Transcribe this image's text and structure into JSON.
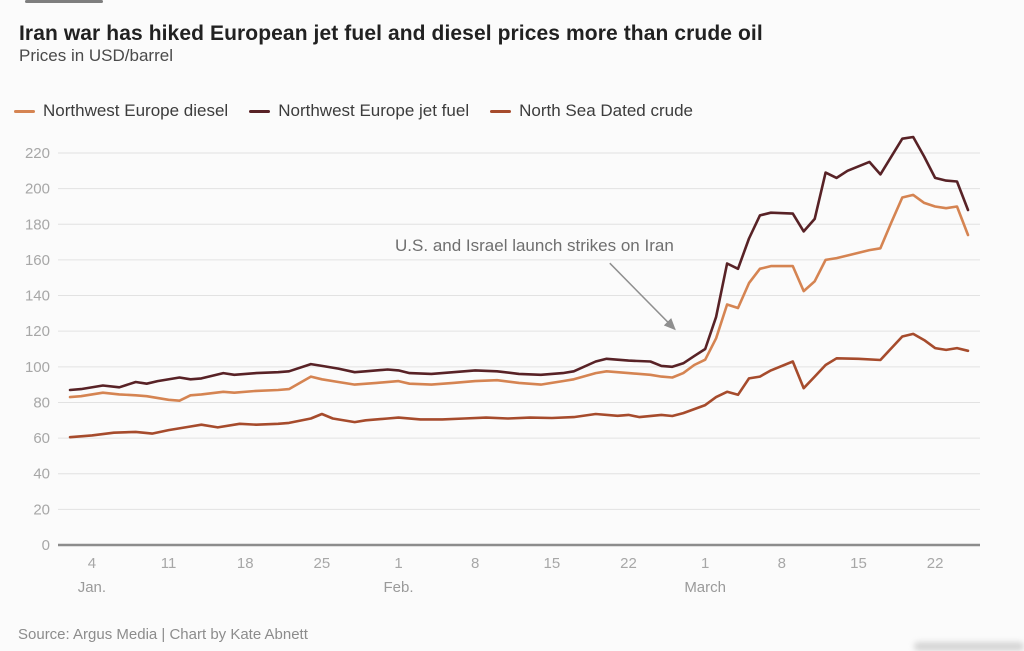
{
  "header": {
    "title": "Iran war has hiked European jet fuel and diesel prices more than crude oil",
    "subtitle": "Prices in USD/barrel"
  },
  "legend": [
    {
      "label": "Northwest Europe diesel",
      "color": "#D58452"
    },
    {
      "label": "Northwest Europe jet fuel",
      "color": "#582226"
    },
    {
      "label": "North Sea Dated crude",
      "color": "#A64B2C"
    }
  ],
  "chart_data": {
    "type": "line",
    "title": "Iran war has hiked European jet fuel and diesel prices more than crude oil",
    "subtitle": "Prices in USD/barrel",
    "xlabel": "",
    "ylabel": "Prices in USD/barrel",
    "ylim": [
      0,
      220
    ],
    "grid": "horizontal",
    "legend_position": "top",
    "y_ticks": [
      0,
      20,
      40,
      60,
      80,
      100,
      120,
      140,
      160,
      180,
      200,
      220
    ],
    "x_domain_days": [
      2,
      84
    ],
    "x_ticks": [
      {
        "day": 4,
        "label": "4"
      },
      {
        "day": 11,
        "label": "11"
      },
      {
        "day": 18,
        "label": "18"
      },
      {
        "day": 25,
        "label": "25"
      },
      {
        "day": 32,
        "label": "1"
      },
      {
        "day": 39,
        "label": "8"
      },
      {
        "day": 46,
        "label": "15"
      },
      {
        "day": 53,
        "label": "22"
      },
      {
        "day": 60,
        "label": "1"
      },
      {
        "day": 67,
        "label": "8"
      },
      {
        "day": 74,
        "label": "15"
      },
      {
        "day": 81,
        "label": "22"
      }
    ],
    "month_labels": [
      {
        "day": 4,
        "label": "Jan."
      },
      {
        "day": 32,
        "label": "Feb."
      },
      {
        "day": 60,
        "label": "March"
      }
    ],
    "annotation": {
      "text": "U.S. and Israel launch strikes on Iran",
      "target_day": 57.5,
      "target_value": 120
    },
    "series": [
      {
        "name": "Northwest Europe diesel",
        "color": "#D58452",
        "points": [
          [
            2,
            83
          ],
          [
            3,
            83.5
          ],
          [
            5,
            85.5
          ],
          [
            6.5,
            84.5
          ],
          [
            8,
            84
          ],
          [
            9,
            83.5
          ],
          [
            11,
            81.5
          ],
          [
            12,
            81
          ],
          [
            13,
            84
          ],
          [
            14,
            84.5
          ],
          [
            16,
            86
          ],
          [
            17,
            85.5
          ],
          [
            19,
            86.5
          ],
          [
            21,
            87
          ],
          [
            22,
            87.5
          ],
          [
            24,
            94.5
          ],
          [
            25,
            93
          ],
          [
            26.5,
            91.5
          ],
          [
            28,
            90
          ],
          [
            30,
            91
          ],
          [
            32,
            92
          ],
          [
            33,
            90.5
          ],
          [
            35,
            90
          ],
          [
            37,
            91
          ],
          [
            39,
            92
          ],
          [
            41,
            92.5
          ],
          [
            43,
            91
          ],
          [
            45,
            90
          ],
          [
            47,
            92
          ],
          [
            48,
            93
          ],
          [
            50,
            96.5
          ],
          [
            51,
            97.5
          ],
          [
            53,
            96.5
          ],
          [
            55,
            95.5
          ],
          [
            56,
            94.5
          ],
          [
            57,
            94
          ],
          [
            58,
            96.5
          ],
          [
            59,
            101
          ],
          [
            60,
            104
          ],
          [
            61,
            116
          ],
          [
            62,
            135
          ],
          [
            63,
            133
          ],
          [
            64,
            147
          ],
          [
            65,
            155
          ],
          [
            66,
            156.5
          ],
          [
            68,
            156.5
          ],
          [
            69,
            142.5
          ],
          [
            70,
            148
          ],
          [
            71,
            160
          ],
          [
            72,
            161
          ],
          [
            73,
            162.5
          ],
          [
            75,
            165.5
          ],
          [
            76,
            166.5
          ],
          [
            77,
            181
          ],
          [
            78,
            195
          ],
          [
            79,
            196.5
          ],
          [
            80,
            192
          ],
          [
            81,
            190
          ],
          [
            82,
            189
          ],
          [
            83,
            190
          ],
          [
            84,
            174
          ]
        ]
      },
      {
        "name": "North Sea Dated crude",
        "color": "#A64B2C",
        "points": [
          [
            2,
            60.5
          ],
          [
            4,
            61.5
          ],
          [
            6,
            63
          ],
          [
            8,
            63.5
          ],
          [
            9.5,
            62.5
          ],
          [
            11,
            64.5
          ],
          [
            13,
            66.5
          ],
          [
            14,
            67.5
          ],
          [
            15.5,
            66
          ],
          [
            17.5,
            68
          ],
          [
            19,
            67.5
          ],
          [
            21,
            68
          ],
          [
            22,
            68.5
          ],
          [
            24,
            71
          ],
          [
            25,
            73.5
          ],
          [
            26,
            71
          ],
          [
            28,
            69
          ],
          [
            29,
            70
          ],
          [
            31,
            71
          ],
          [
            32,
            71.5
          ],
          [
            34,
            70.5
          ],
          [
            36,
            70.5
          ],
          [
            38,
            71
          ],
          [
            40,
            71.5
          ],
          [
            42,
            71
          ],
          [
            44,
            71.5
          ],
          [
            46,
            71.3
          ],
          [
            48,
            71.8
          ],
          [
            50,
            73.5
          ],
          [
            52,
            72.5
          ],
          [
            53,
            73
          ],
          [
            54,
            71.8
          ],
          [
            56,
            73
          ],
          [
            57,
            72.4
          ],
          [
            58,
            74
          ],
          [
            60,
            78.5
          ],
          [
            61,
            83
          ],
          [
            62,
            86
          ],
          [
            63,
            84.3
          ],
          [
            64,
            93.5
          ],
          [
            65,
            94.5
          ],
          [
            66,
            98
          ],
          [
            68,
            103
          ],
          [
            69,
            88
          ],
          [
            70,
            94.5
          ],
          [
            71,
            101
          ],
          [
            72,
            104.8
          ],
          [
            74,
            104.5
          ],
          [
            76,
            103.8
          ],
          [
            78,
            117
          ],
          [
            79,
            118.5
          ],
          [
            80,
            115
          ],
          [
            81,
            110.5
          ],
          [
            82,
            109.5
          ],
          [
            83,
            110.5
          ],
          [
            84,
            109
          ]
        ]
      },
      {
        "name": "Northwest Europe jet fuel",
        "color": "#582226",
        "points": [
          [
            2,
            87
          ],
          [
            3,
            87.5
          ],
          [
            5,
            89.5
          ],
          [
            6.5,
            88.5
          ],
          [
            8,
            91.5
          ],
          [
            9,
            90.5
          ],
          [
            10,
            92
          ],
          [
            12,
            94
          ],
          [
            13,
            93
          ],
          [
            14,
            93.5
          ],
          [
            16,
            96.5
          ],
          [
            17,
            95.5
          ],
          [
            19,
            96.5
          ],
          [
            21,
            97
          ],
          [
            22,
            97.5
          ],
          [
            24,
            101.5
          ],
          [
            25,
            100.5
          ],
          [
            26.5,
            99
          ],
          [
            28,
            97
          ],
          [
            29,
            97.5
          ],
          [
            31,
            98.5
          ],
          [
            32,
            98
          ],
          [
            33,
            96.5
          ],
          [
            35,
            96
          ],
          [
            37,
            97
          ],
          [
            39,
            98
          ],
          [
            41,
            97.5
          ],
          [
            43,
            96
          ],
          [
            45,
            95.5
          ],
          [
            47,
            96.5
          ],
          [
            48,
            97.5
          ],
          [
            50,
            103
          ],
          [
            51,
            104.5
          ],
          [
            53,
            103.5
          ],
          [
            55,
            103
          ],
          [
            56,
            100.5
          ],
          [
            57,
            100
          ],
          [
            58,
            102
          ],
          [
            59,
            106
          ],
          [
            60,
            110
          ],
          [
            61,
            128
          ],
          [
            62,
            158
          ],
          [
            63,
            155
          ],
          [
            64,
            172
          ],
          [
            65,
            185
          ],
          [
            66,
            186.5
          ],
          [
            68,
            186
          ],
          [
            69,
            176
          ],
          [
            70,
            183
          ],
          [
            71,
            209
          ],
          [
            72,
            206
          ],
          [
            73,
            210
          ],
          [
            75,
            215
          ],
          [
            76,
            208
          ],
          [
            78,
            228
          ],
          [
            79,
            229
          ],
          [
            80,
            218
          ],
          [
            81,
            206
          ],
          [
            82,
            204.5
          ],
          [
            83,
            204
          ],
          [
            84,
            188
          ]
        ]
      }
    ]
  },
  "source": "Source: Argus Media | Chart by Kate Abnett"
}
